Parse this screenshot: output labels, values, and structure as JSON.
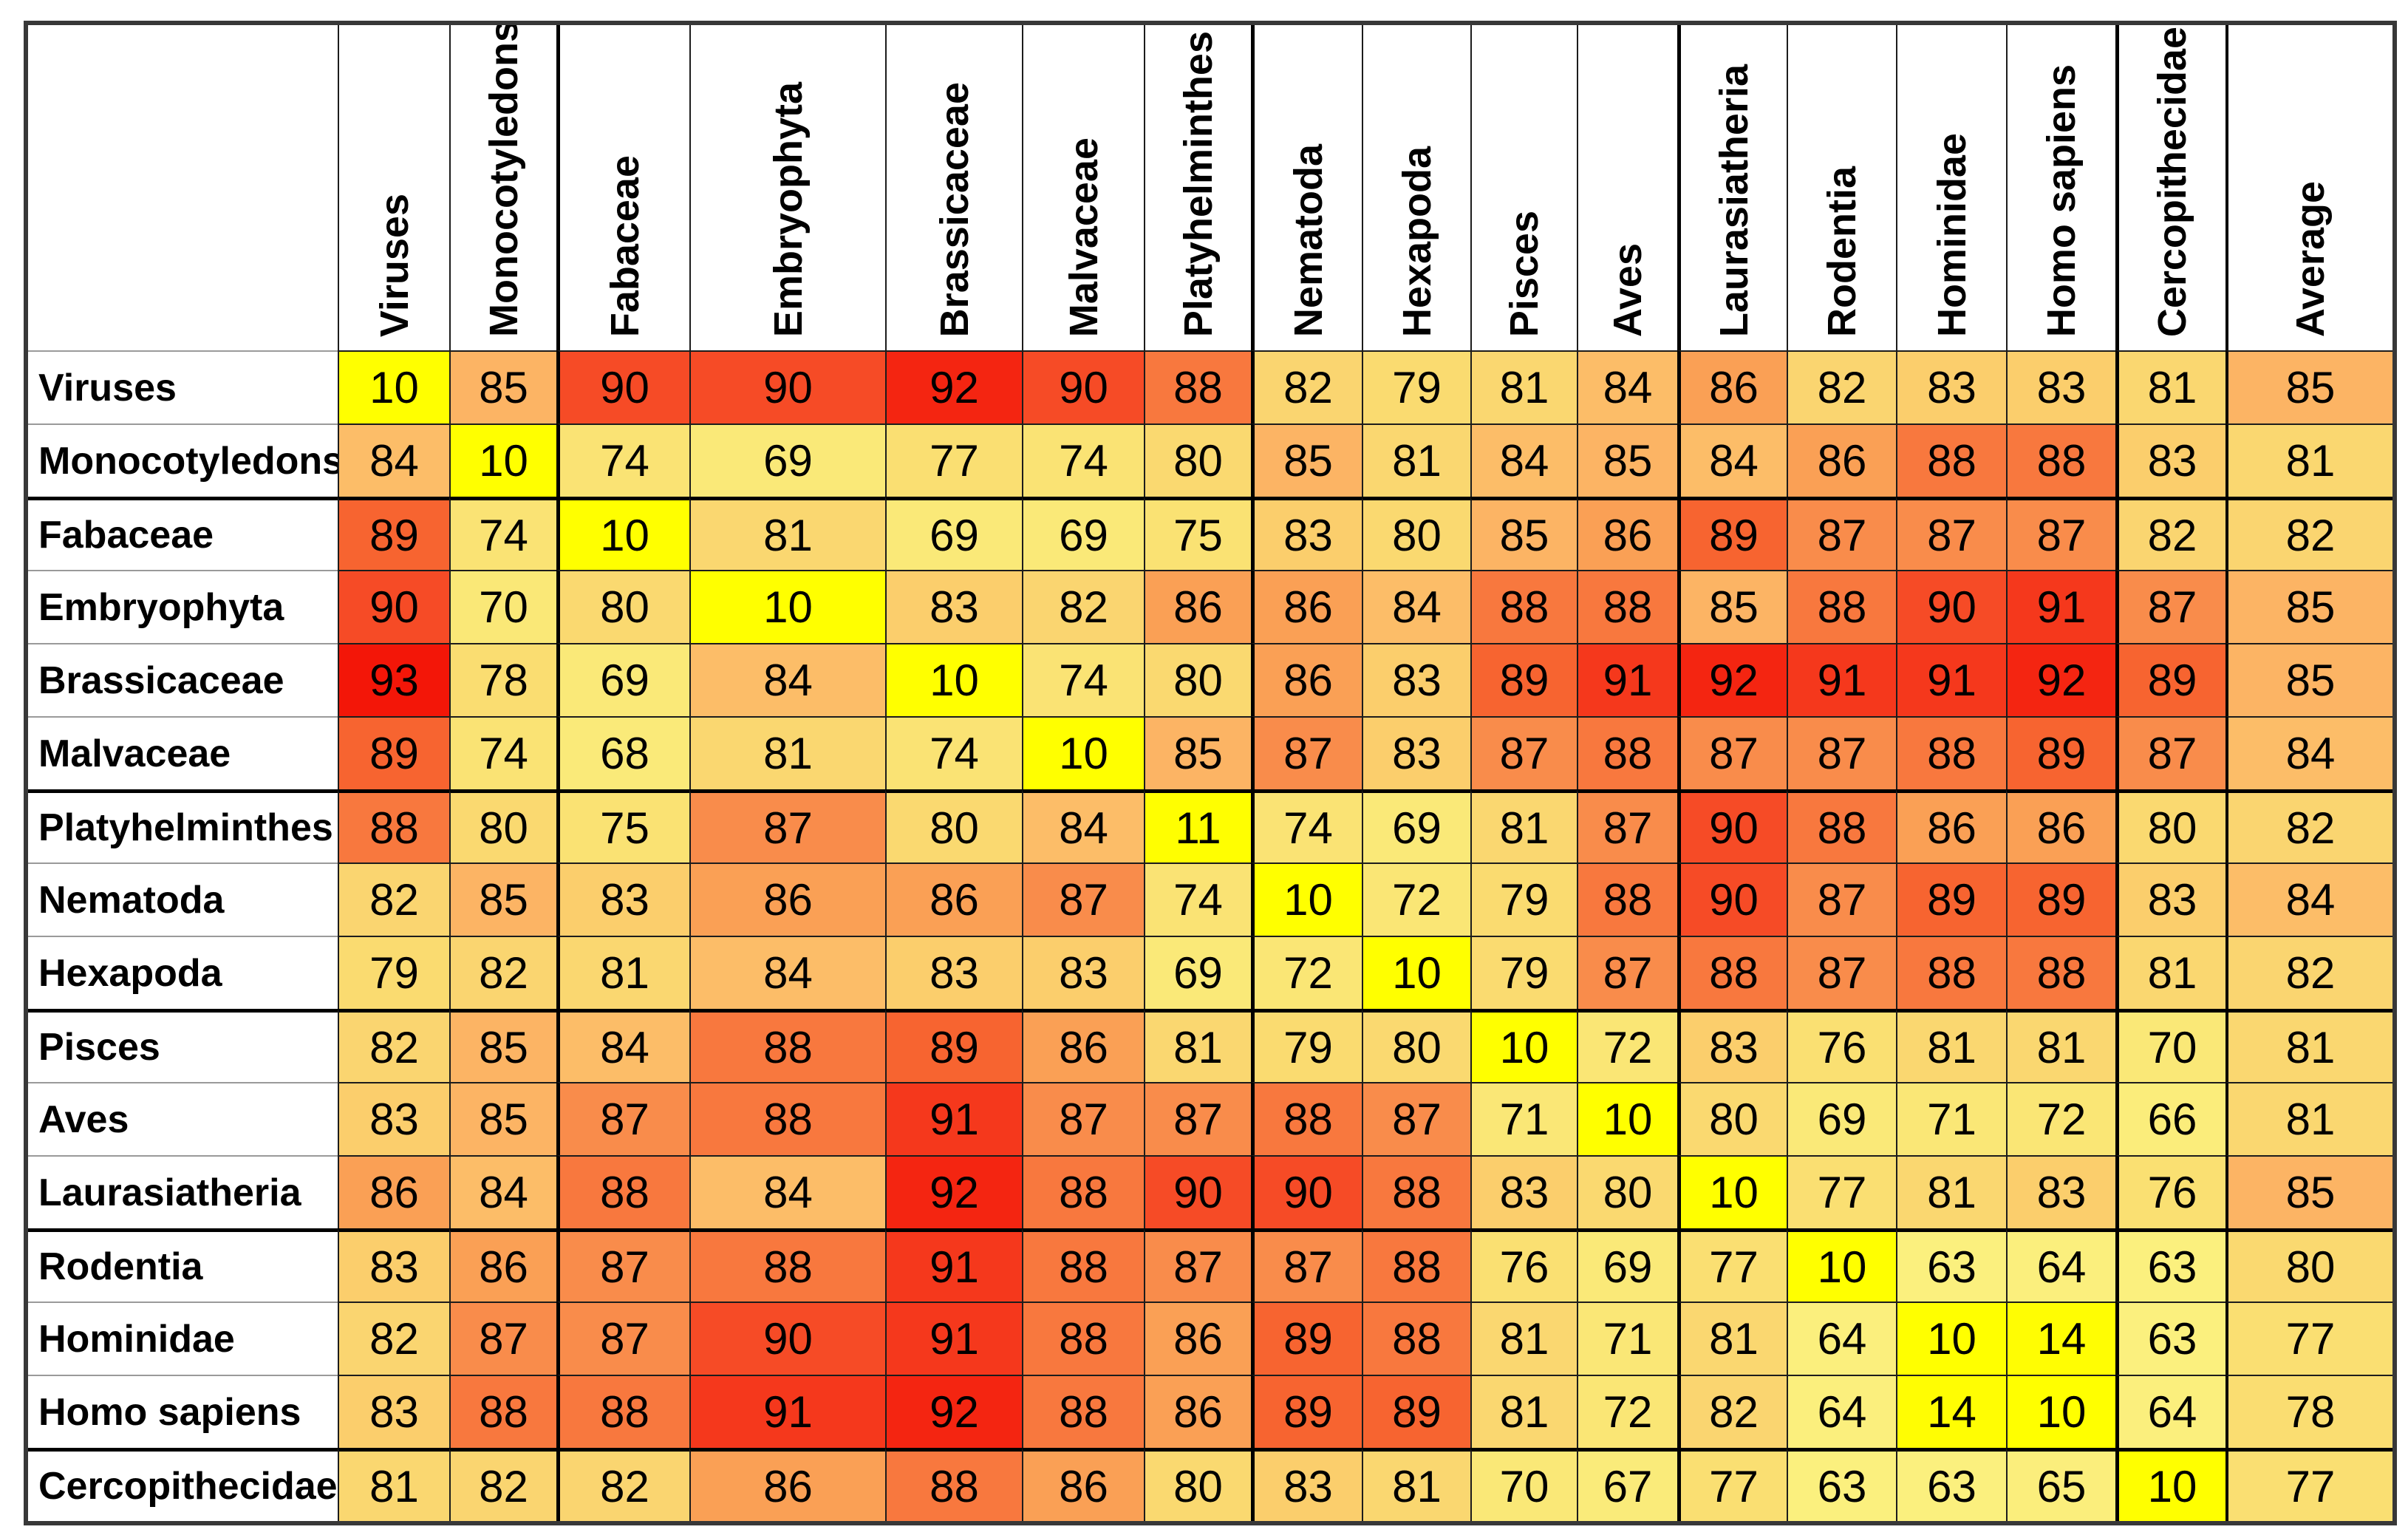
{
  "chart_data": {
    "type": "heatmap",
    "columns": [
      "Viruses",
      "Monocotyledons",
      "Fabaceae",
      "Embryophyta",
      "Brassicaceae",
      "Malvaceae",
      "Platyhelminthes",
      "Nematoda",
      "Hexapoda",
      "Pisces",
      "Aves",
      "Laurasiatheria",
      "Rodentia",
      "Hominidae",
      "Homo sapiens",
      "Cercopithecidae",
      "Average"
    ],
    "rows": [
      {
        "label": "Viruses",
        "values": [
          10,
          85,
          90,
          90,
          92,
          90,
          88,
          82,
          79,
          81,
          84,
          86,
          82,
          83,
          83,
          81,
          85
        ]
      },
      {
        "label": "Monocotyledons",
        "values": [
          84,
          10,
          74,
          69,
          77,
          74,
          80,
          85,
          81,
          84,
          85,
          84,
          86,
          88,
          88,
          83,
          81
        ]
      },
      {
        "label": "Fabaceae",
        "values": [
          89,
          74,
          10,
          81,
          69,
          69,
          75,
          83,
          80,
          85,
          86,
          89,
          87,
          87,
          87,
          82,
          82
        ]
      },
      {
        "label": "Embryophyta",
        "values": [
          90,
          70,
          80,
          10,
          83,
          82,
          86,
          86,
          84,
          88,
          88,
          85,
          88,
          90,
          91,
          87,
          85
        ]
      },
      {
        "label": "Brassicaceae",
        "values": [
          93,
          78,
          69,
          84,
          10,
          74,
          80,
          86,
          83,
          89,
          91,
          92,
          91,
          91,
          92,
          89,
          85
        ]
      },
      {
        "label": "Malvaceae",
        "values": [
          89,
          74,
          68,
          81,
          74,
          10,
          85,
          87,
          83,
          87,
          88,
          87,
          87,
          88,
          89,
          87,
          84
        ]
      },
      {
        "label": "Platyhelminthes",
        "values": [
          88,
          80,
          75,
          87,
          80,
          84,
          11,
          74,
          69,
          81,
          87,
          90,
          88,
          86,
          86,
          80,
          82
        ]
      },
      {
        "label": "Nematoda",
        "values": [
          82,
          85,
          83,
          86,
          86,
          87,
          74,
          10,
          72,
          79,
          88,
          90,
          87,
          89,
          89,
          83,
          84
        ]
      },
      {
        "label": "Hexapoda",
        "values": [
          79,
          82,
          81,
          84,
          83,
          83,
          69,
          72,
          10,
          79,
          87,
          88,
          87,
          88,
          88,
          81,
          82
        ]
      },
      {
        "label": "Pisces",
        "values": [
          82,
          85,
          84,
          88,
          89,
          86,
          81,
          79,
          80,
          10,
          72,
          83,
          76,
          81,
          81,
          70,
          81
        ]
      },
      {
        "label": "Aves",
        "values": [
          83,
          85,
          87,
          88,
          91,
          87,
          87,
          88,
          87,
          71,
          10,
          80,
          69,
          71,
          72,
          66,
          81
        ]
      },
      {
        "label": "Laurasiatheria",
        "values": [
          86,
          84,
          88,
          84,
          92,
          88,
          90,
          90,
          88,
          83,
          80,
          10,
          77,
          81,
          83,
          76,
          85
        ]
      },
      {
        "label": "Rodentia",
        "values": [
          83,
          86,
          87,
          88,
          91,
          88,
          87,
          87,
          88,
          76,
          69,
          77,
          10,
          63,
          64,
          63,
          80
        ]
      },
      {
        "label": "Hominidae",
        "values": [
          82,
          87,
          87,
          90,
          91,
          88,
          86,
          89,
          88,
          81,
          71,
          81,
          64,
          10,
          14,
          63,
          77
        ]
      },
      {
        "label": "Homo sapiens",
        "values": [
          83,
          88,
          88,
          91,
          92,
          88,
          86,
          89,
          89,
          81,
          72,
          82,
          64,
          14,
          10,
          64,
          78
        ]
      },
      {
        "label": "Cercopithecidae",
        "values": [
          81,
          82,
          82,
          86,
          88,
          86,
          80,
          83,
          81,
          70,
          67,
          77,
          63,
          63,
          65,
          10,
          77
        ]
      }
    ],
    "value_range": [
      10,
      93
    ],
    "color_scale": {
      "low_color": "#FFFF00",
      "high_color": "#F31608",
      "stops": [
        {
          "value": 10,
          "color": "#FFFF00"
        },
        {
          "value": 15,
          "color": "#FFFC04"
        },
        {
          "value": 63,
          "color": "#FBF07E"
        },
        {
          "value": 70,
          "color": "#FAE877"
        },
        {
          "value": 75,
          "color": "#FAE273"
        },
        {
          "value": 79,
          "color": "#FADB70"
        },
        {
          "value": 82,
          "color": "#FAD570"
        },
        {
          "value": 83,
          "color": "#FBCE6C"
        },
        {
          "value": 84,
          "color": "#FCBD68"
        },
        {
          "value": 85,
          "color": "#FCB464"
        },
        {
          "value": 86,
          "color": "#FAA055"
        },
        {
          "value": 87,
          "color": "#F98C4B"
        },
        {
          "value": 88,
          "color": "#F8783E"
        },
        {
          "value": 89,
          "color": "#F76430"
        },
        {
          "value": 90,
          "color": "#F64B26"
        },
        {
          "value": 91,
          "color": "#F5381C"
        },
        {
          "value": 92,
          "color": "#F42511"
        },
        {
          "value": 93,
          "color": "#F31608"
        }
      ]
    },
    "grid_color": "#1c1c1c",
    "outer_border_color": "#383838",
    "text_color": "#000000",
    "background_color": "#FFFFFF"
  }
}
